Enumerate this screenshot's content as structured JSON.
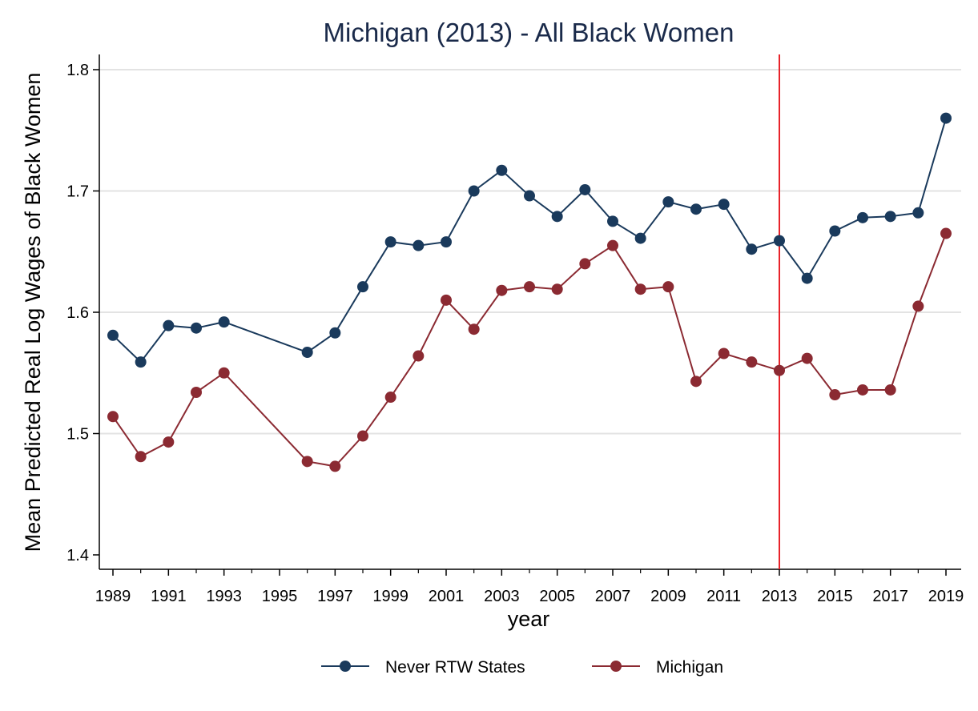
{
  "chart_data": {
    "type": "line",
    "title": "Michigan (2013) - All Black Women",
    "xlabel": "year",
    "ylabel": "Mean Predicted Real Log Wages of Black Women",
    "xlim": [
      1989,
      2019
    ],
    "ylim": [
      1.4,
      1.8
    ],
    "x_ticks": [
      1989,
      1991,
      1993,
      1995,
      1997,
      1999,
      2001,
      2003,
      2005,
      2007,
      2009,
      2011,
      2013,
      2015,
      2017,
      2019
    ],
    "y_ticks": [
      1.4,
      1.5,
      1.6,
      1.7,
      1.8
    ],
    "y_tick_labels": [
      "1.4",
      "1.5",
      "1.6",
      "1.7",
      "1.8"
    ],
    "grid": "horizontal",
    "legend_position": "bottom",
    "vertical_line": {
      "x": 2013,
      "color": "#e8232a"
    },
    "series": [
      {
        "name": "Never RTW States",
        "color": "#1a3a5c",
        "x": [
          1989,
          1990,
          1991,
          1992,
          1993,
          1996,
          1997,
          1998,
          1999,
          2000,
          2001,
          2002,
          2003,
          2004,
          2005,
          2006,
          2007,
          2008,
          2009,
          2010,
          2011,
          2012,
          2013,
          2014,
          2015,
          2016,
          2017,
          2018,
          2019
        ],
        "values": [
          1.581,
          1.559,
          1.589,
          1.587,
          1.592,
          1.567,
          1.583,
          1.621,
          1.658,
          1.655,
          1.658,
          1.7,
          1.717,
          1.696,
          1.679,
          1.701,
          1.675,
          1.661,
          1.691,
          1.685,
          1.689,
          1.652,
          1.659,
          1.628,
          1.667,
          1.678,
          1.679,
          1.682,
          1.76
        ]
      },
      {
        "name": "Michigan",
        "color": "#8b2a32",
        "x": [
          1989,
          1990,
          1991,
          1992,
          1993,
          1996,
          1997,
          1998,
          1999,
          2000,
          2001,
          2002,
          2003,
          2004,
          2005,
          2006,
          2007,
          2008,
          2009,
          2010,
          2011,
          2012,
          2013,
          2014,
          2015,
          2016,
          2017,
          2018,
          2019
        ],
        "values": [
          1.514,
          1.481,
          1.493,
          1.534,
          1.55,
          1.477,
          1.473,
          1.498,
          1.53,
          1.564,
          1.61,
          1.586,
          1.618,
          1.621,
          1.619,
          1.64,
          1.655,
          1.619,
          1.621,
          1.543,
          1.566,
          1.559,
          1.552,
          1.562,
          1.532,
          1.536,
          1.536,
          1.605,
          1.665
        ]
      }
    ]
  }
}
